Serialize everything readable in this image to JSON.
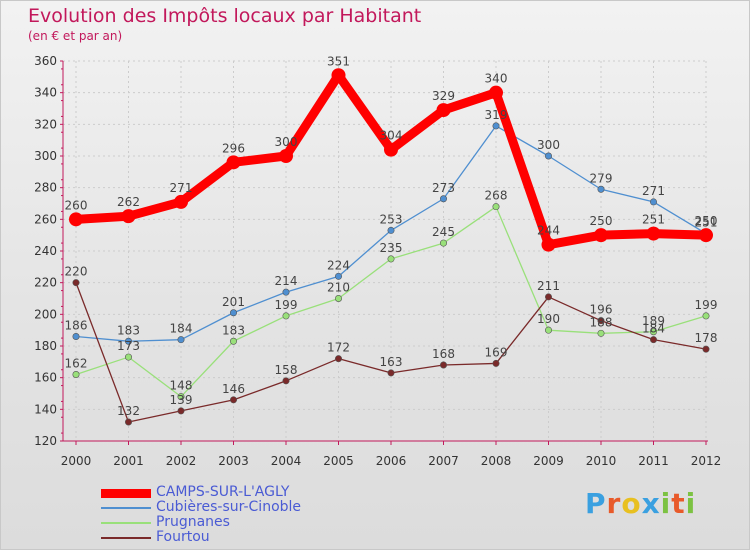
{
  "header": {
    "title": "Evolution des Impôts locaux par Habitant",
    "subtitle": "(en € et par an)"
  },
  "logo": {
    "text": "Proxiti",
    "letter_colors": [
      "#3aa0e0",
      "#e85a2a",
      "#e8c020",
      "#3aa0e0",
      "#7cc242",
      "#e85a2a",
      "#7cc242"
    ]
  },
  "chart_data": {
    "type": "line",
    "x": [
      "2000",
      "2001",
      "2002",
      "2003",
      "2004",
      "2005",
      "2006",
      "2007",
      "2008",
      "2009",
      "2010",
      "2011",
      "2012"
    ],
    "ylim": [
      120,
      360
    ],
    "yticks": [
      120,
      140,
      160,
      180,
      200,
      220,
      240,
      260,
      280,
      300,
      320,
      340,
      360
    ],
    "grid": true,
    "legend_position": "bottom-left",
    "series": [
      {
        "name": "CAMPS-SUR-L'AGLY",
        "color": "#ff0000",
        "emphasis": true,
        "values": [
          260,
          262,
          271,
          296,
          300,
          351,
          304,
          329,
          340,
          244,
          250,
          251,
          250
        ]
      },
      {
        "name": "Cubières-sur-Cinoble",
        "color": "#4f8fd0",
        "emphasis": false,
        "values": [
          186,
          183,
          184,
          201,
          214,
          224,
          253,
          273,
          319,
          300,
          279,
          271,
          251
        ]
      },
      {
        "name": "Prugnanes",
        "color": "#99e07a",
        "emphasis": false,
        "values": [
          162,
          173,
          148,
          183,
          199,
          210,
          235,
          245,
          268,
          190,
          188,
          189,
          199
        ]
      },
      {
        "name": "Fourtou",
        "color": "#7a2a2a",
        "emphasis": false,
        "values": [
          220,
          132,
          139,
          146,
          158,
          172,
          163,
          168,
          169,
          211,
          196,
          184,
          178
        ]
      }
    ]
  }
}
